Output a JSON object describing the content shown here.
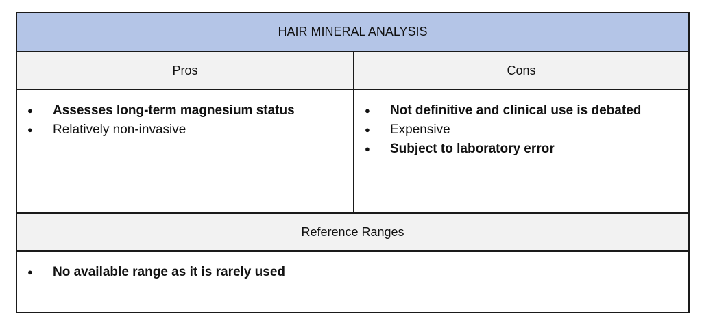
{
  "table": {
    "title": "HAIR MINERAL ANALYSIS",
    "pros_header": "Pros",
    "cons_header": "Cons",
    "pros": [
      {
        "text": "Assesses long-term magnesium status",
        "bold": true
      },
      {
        "text": "Relatively non-invasive",
        "bold": false
      }
    ],
    "cons": [
      {
        "text": "Not definitive and clinical use is debated",
        "bold": true
      },
      {
        "text": "Expensive",
        "bold": false
      },
      {
        "text": "Subject to laboratory error",
        "bold": true
      }
    ],
    "reference_header": "Reference Ranges",
    "reference_items": [
      {
        "text": "No available range as it is rarely used",
        "bold": true
      }
    ],
    "colors": {
      "title_bg": "#b4c5e7",
      "header_bg": "#f2f2f2",
      "border": "#1a1a1a"
    }
  }
}
